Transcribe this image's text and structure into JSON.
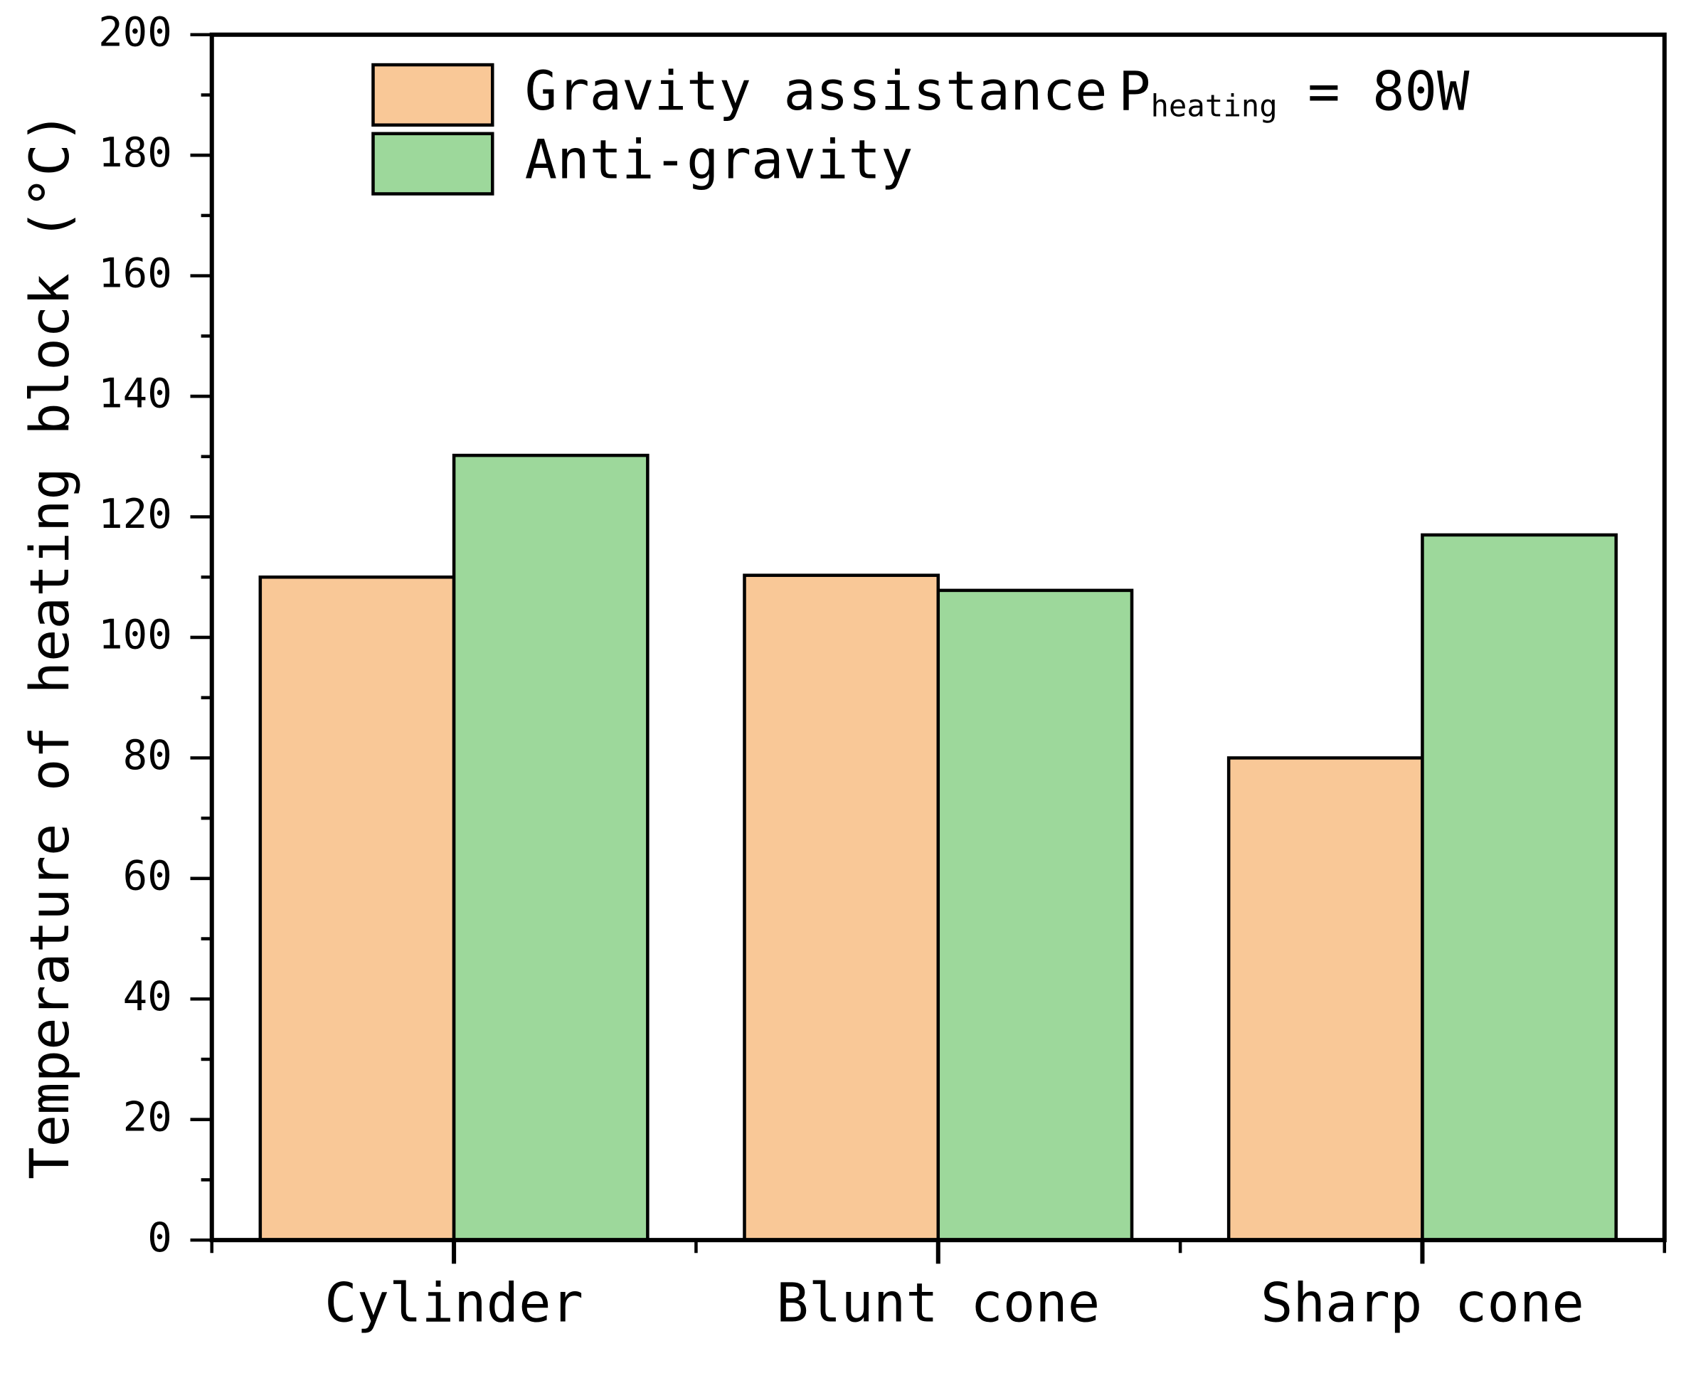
{
  "chart_data": {
    "type": "bar",
    "y_label": "Temperature of heating block (°C)",
    "categories": [
      "Cylinder",
      "Blunt cone",
      "Sharp cone"
    ],
    "series": [
      {
        "name": "Gravity assistance",
        "color": "#f9c897",
        "values": [
          110,
          110.3,
          80
        ]
      },
      {
        "name": "Anti-gravity",
        "color": "#9dd89b",
        "values": [
          130.2,
          107.8,
          117
        ]
      }
    ],
    "annotation": {
      "main": "P",
      "subscript": "heating",
      "suffix": "= 80W"
    },
    "ylim": [
      0,
      200
    ],
    "yticks": [
      0,
      20,
      40,
      60,
      80,
      100,
      120,
      140,
      160,
      180,
      200
    ],
    "grid": false
  }
}
